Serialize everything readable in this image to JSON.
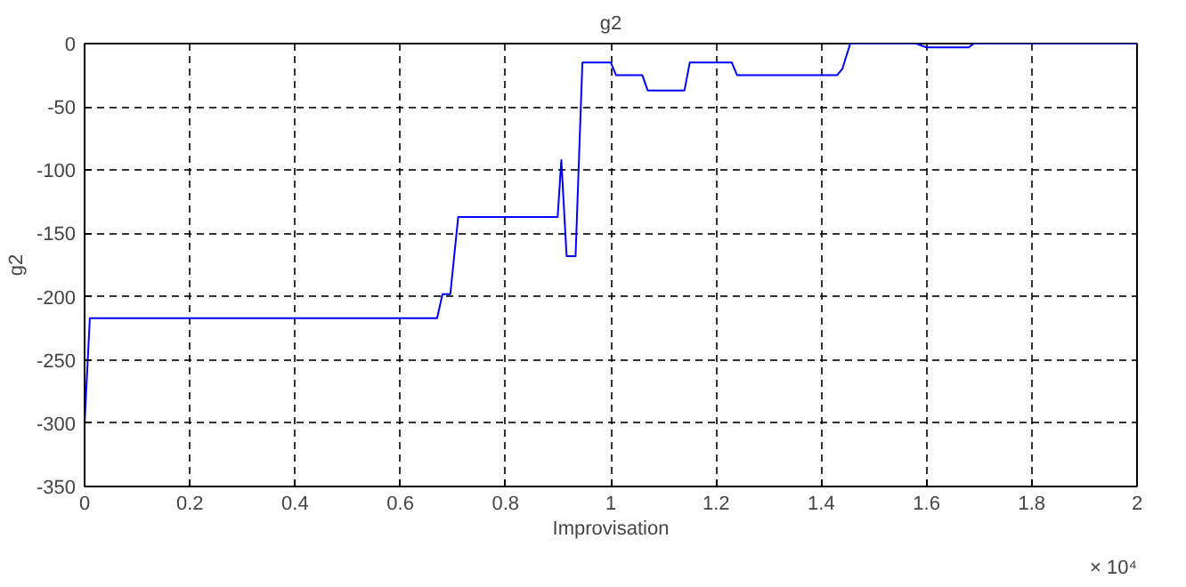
{
  "chart_data": {
    "type": "line",
    "title": "g2",
    "xlabel": "Improvisation",
    "ylabel": "g2",
    "annotations": [
      "× 10⁴"
    ],
    "x": [
      0,
      0.01,
      0.67,
      0.68,
      0.695,
      0.71,
      0.899,
      0.906,
      0.916,
      0.933,
      0.946,
      1.0,
      1.01,
      1.06,
      1.07,
      1.14,
      1.15,
      1.23,
      1.24,
      1.43,
      1.44,
      1.455,
      1.58,
      1.6,
      1.68,
      1.69,
      2
    ],
    "series": [
      {
        "color": "#0000ff",
        "values": [
          -300,
          -217,
          -217,
          -198,
          -198,
          -137,
          -137,
          -92,
          -168,
          -168,
          -15,
          -15,
          -25,
          -25,
          -37,
          -37,
          -15,
          -15,
          -25,
          -25,
          -20,
          0,
          0,
          -3,
          -3,
          0,
          0
        ]
      }
    ],
    "xlim": [
      0,
      2
    ],
    "ylim": [
      -350,
      0
    ],
    "xticks": [
      0,
      0.2,
      0.4,
      0.6,
      0.8,
      1,
      1.2,
      1.4,
      1.6,
      1.8,
      2
    ],
    "yticks": [
      -350,
      -300,
      -250,
      -200,
      -150,
      -100,
      -50,
      0
    ],
    "grid": true,
    "line_style": "solid",
    "marker": "none"
  }
}
